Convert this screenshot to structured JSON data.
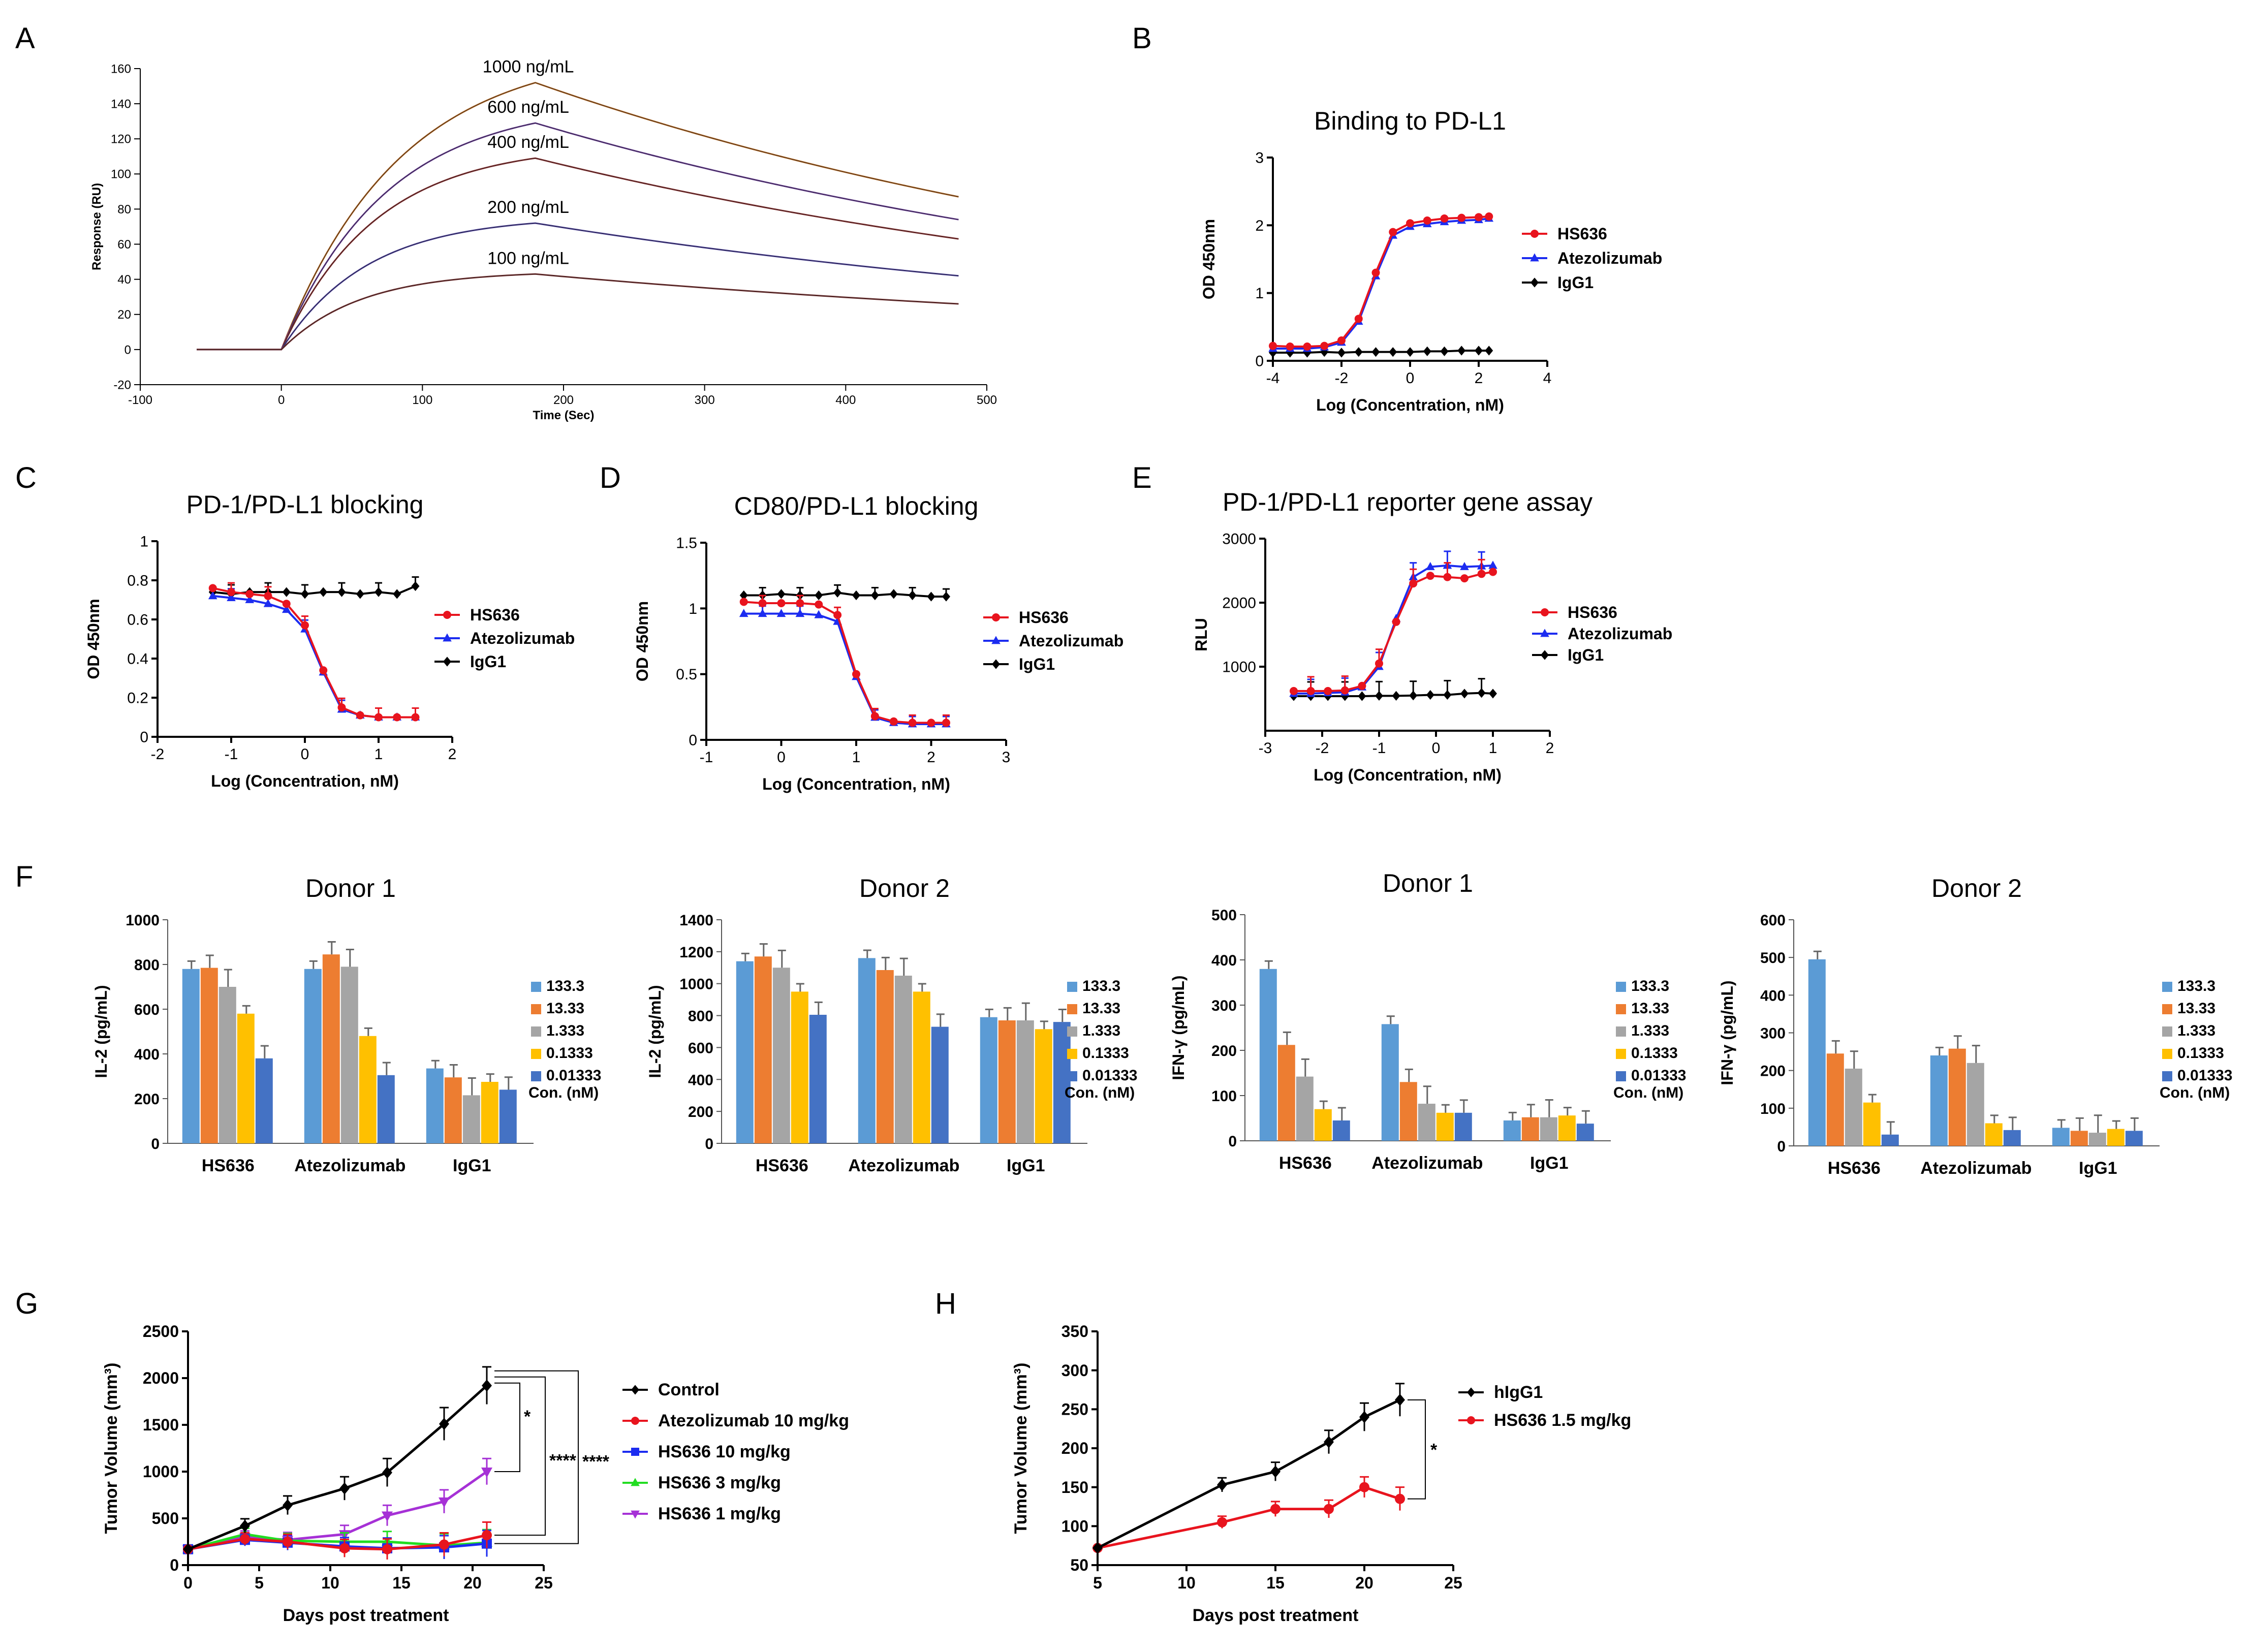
{
  "figure": {
    "panel_letters": [
      "A",
      "B",
      "C",
      "D",
      "E",
      "F",
      "G",
      "H"
    ]
  },
  "chart_data": [
    {
      "id": "A",
      "type": "line",
      "title": "",
      "xlabel": "Time (Sec)",
      "ylabel": "Response (RU)",
      "xlim": [
        -100,
        500
      ],
      "ylim": [
        -20,
        160
      ],
      "xticks": [
        -100,
        0,
        100,
        200,
        300,
        400,
        500
      ],
      "yticks": [
        -20,
        0,
        20,
        40,
        60,
        80,
        100,
        120,
        140,
        160
      ],
      "series": [
        {
          "name": "1000 ng/mL",
          "peak": 152,
          "end": 87,
          "color": "#b5651d"
        },
        {
          "name": "600 ng/mL",
          "peak": 129,
          "end": 74,
          "color": "#6a3d9a"
        },
        {
          "name": "400 ng/mL",
          "peak": 109,
          "end": 63,
          "color": "#8b2e2e"
        },
        {
          "name": "200 ng/mL",
          "peak": 72,
          "end": 42,
          "color": "#4b3fa0"
        },
        {
          "name": "100 ng/mL",
          "peak": 43,
          "end": 26,
          "color": "#7a3030"
        }
      ],
      "association_end": 180,
      "dissociation_end": 480
    },
    {
      "id": "B",
      "type": "line",
      "title": "Binding to PD-L1",
      "xlabel": "Log (Concentration, nM)",
      "ylabel": "OD 450nm",
      "xlim": [
        -4,
        4
      ],
      "ylim": [
        0,
        3
      ],
      "xticks": [
        -4,
        -2,
        0,
        2,
        4
      ],
      "yticks": [
        0,
        1,
        2,
        3
      ],
      "series": [
        {
          "name": "HS636",
          "color": "#e8141e",
          "marker": "circle",
          "x": [
            -4,
            -3.5,
            -3,
            -2.5,
            -2,
            -1.5,
            -1,
            -0.5,
            0,
            0.5,
            1,
            1.5,
            2,
            2.3
          ],
          "y": [
            0.22,
            0.21,
            0.21,
            0.22,
            0.3,
            0.62,
            1.3,
            1.9,
            2.03,
            2.07,
            2.1,
            2.11,
            2.12,
            2.13
          ]
        },
        {
          "name": "Atezolizumab",
          "color": "#1c2cf0",
          "marker": "triangle",
          "x": [
            -4,
            -3.5,
            -3,
            -2.5,
            -2,
            -1.5,
            -1,
            -0.5,
            0,
            0.5,
            1,
            1.5,
            2,
            2.3
          ],
          "y": [
            0.18,
            0.18,
            0.18,
            0.2,
            0.27,
            0.58,
            1.25,
            1.85,
            1.98,
            2.02,
            2.05,
            2.07,
            2.08,
            2.1
          ]
        },
        {
          "name": "IgG1",
          "color": "#000000",
          "marker": "diamond",
          "x": [
            -4,
            -3.5,
            -3,
            -2.5,
            -2,
            -1.5,
            -1,
            -0.5,
            0,
            0.5,
            1,
            1.5,
            2,
            2.3
          ],
          "y": [
            0.12,
            0.12,
            0.12,
            0.13,
            0.12,
            0.13,
            0.13,
            0.13,
            0.13,
            0.14,
            0.14,
            0.15,
            0.15,
            0.15
          ]
        }
      ]
    },
    {
      "id": "C",
      "type": "line",
      "title": "PD-1/PD-L1 blocking",
      "xlabel": "Log (Concentration, nM)",
      "ylabel": "OD 450nm",
      "xlim": [
        -2,
        2
      ],
      "ylim": [
        0.0,
        1.0
      ],
      "xticks": [
        -2,
        -1,
        0,
        1,
        2
      ],
      "yticks": [
        0.0,
        0.2,
        0.4,
        0.6,
        0.8,
        1.0
      ],
      "series": [
        {
          "name": "HS636",
          "color": "#e8141e",
          "marker": "circle",
          "x": [
            -1.25,
            -1,
            -0.75,
            -0.5,
            -0.25,
            0,
            0.25,
            0.5,
            0.75,
            1,
            1.25,
            1.5
          ],
          "y": [
            0.76,
            0.74,
            0.73,
            0.72,
            0.68,
            0.57,
            0.34,
            0.15,
            0.11,
            0.1,
            0.1,
            0.1
          ]
        },
        {
          "name": "Atezolizumab",
          "color": "#1c2cf0",
          "marker": "triangle",
          "x": [
            -1.25,
            -1,
            -0.75,
            -0.5,
            -0.25,
            0,
            0.25,
            0.5,
            0.75,
            1,
            1.25,
            1.5
          ],
          "y": [
            0.72,
            0.71,
            0.7,
            0.68,
            0.65,
            0.55,
            0.33,
            0.14,
            0.11,
            0.1,
            0.1,
            0.1
          ]
        },
        {
          "name": "IgG1",
          "color": "#000000",
          "marker": "diamond",
          "x": [
            -1.25,
            -1,
            -0.75,
            -0.5,
            -0.25,
            0,
            0.25,
            0.5,
            0.75,
            1,
            1.25,
            1.5
          ],
          "y": [
            0.74,
            0.73,
            0.74,
            0.74,
            0.74,
            0.73,
            0.74,
            0.74,
            0.73,
            0.74,
            0.73,
            0.77
          ]
        }
      ]
    },
    {
      "id": "D",
      "type": "line",
      "title": "CD80/PD-L1 blocking",
      "xlabel": "Log (Concentration, nM)",
      "ylabel": "OD 450nm",
      "xlim": [
        -1,
        3
      ],
      "ylim": [
        0.0,
        1.5
      ],
      "xticks": [
        -1,
        0,
        1,
        2,
        3
      ],
      "yticks": [
        0.0,
        0.5,
        1.0,
        1.5
      ],
      "series": [
        {
          "name": "HS636",
          "color": "#e8141e",
          "marker": "circle",
          "x": [
            -0.5,
            -0.25,
            0,
            0.25,
            0.5,
            0.75,
            1,
            1.25,
            1.5,
            1.75,
            2,
            2.2
          ],
          "y": [
            1.05,
            1.04,
            1.04,
            1.04,
            1.03,
            0.95,
            0.5,
            0.18,
            0.14,
            0.13,
            0.13,
            0.13
          ]
        },
        {
          "name": "Atezolizumab",
          "color": "#1c2cf0",
          "marker": "triangle",
          "x": [
            -0.5,
            -0.25,
            0,
            0.25,
            0.5,
            0.75,
            1,
            1.25,
            1.5,
            1.75,
            2,
            2.2
          ],
          "y": [
            0.96,
            0.96,
            0.96,
            0.96,
            0.95,
            0.9,
            0.48,
            0.17,
            0.13,
            0.12,
            0.12,
            0.12
          ]
        },
        {
          "name": "IgG1",
          "color": "#000000",
          "marker": "diamond",
          "x": [
            -0.5,
            -0.25,
            0,
            0.25,
            0.5,
            0.75,
            1,
            1.25,
            1.5,
            1.75,
            2,
            2.2
          ],
          "y": [
            1.1,
            1.1,
            1.11,
            1.1,
            1.1,
            1.12,
            1.1,
            1.1,
            1.11,
            1.1,
            1.09,
            1.09
          ]
        }
      ]
    },
    {
      "id": "E",
      "type": "line",
      "title": "PD-1/PD-L1 reporter gene assay",
      "xlabel": "Log (Concentration, nM)",
      "ylabel": "RLU",
      "xlim": [
        -3,
        2
      ],
      "ylim": [
        0,
        3000
      ],
      "xticks": [
        -3,
        -2,
        -1,
        0,
        1,
        2
      ],
      "yticks": [
        1000,
        2000,
        3000
      ],
      "series": [
        {
          "name": "HS636",
          "color": "#e8141e",
          "marker": "circle",
          "x": [
            -2.5,
            -2.2,
            -1.9,
            -1.6,
            -1.3,
            -1,
            -0.7,
            -0.4,
            -0.1,
            0.2,
            0.5,
            0.8,
            1.0
          ],
          "y": [
            620,
            620,
            620,
            630,
            700,
            1050,
            1700,
            2300,
            2420,
            2400,
            2380,
            2450,
            2480
          ]
        },
        {
          "name": "Atezolizumab",
          "color": "#1c2cf0",
          "marker": "triangle",
          "x": [
            -2.5,
            -2.2,
            -1.9,
            -1.6,
            -1.3,
            -1,
            -0.7,
            -0.4,
            -0.1,
            0.2,
            0.5,
            0.8,
            1.0
          ],
          "y": [
            580,
            580,
            590,
            600,
            680,
            1000,
            1750,
            2400,
            2560,
            2580,
            2560,
            2570,
            2580
          ]
        },
        {
          "name": "IgG1",
          "color": "#000000",
          "marker": "diamond",
          "x": [
            -2.5,
            -2.2,
            -1.9,
            -1.6,
            -1.3,
            -1,
            -0.7,
            -0.4,
            -0.1,
            0.2,
            0.5,
            0.8,
            1.0
          ],
          "y": [
            540,
            540,
            540,
            540,
            540,
            545,
            545,
            550,
            560,
            560,
            580,
            590,
            580
          ]
        }
      ]
    },
    {
      "id": "F1",
      "type": "bar",
      "title": "Donor 1",
      "ylabel": "IL-2 (pg/mL)",
      "ylim": [
        0,
        1000
      ],
      "yticks": [
        0,
        200,
        400,
        600,
        800,
        1000
      ],
      "categories": [
        "HS636",
        "Atezolizumab",
        "IgG1"
      ],
      "series": [
        {
          "name": "133.3",
          "color": "#5b9bd5",
          "values": [
            780,
            780,
            335
          ]
        },
        {
          "name": "13.33",
          "color": "#ed7d31",
          "values": [
            785,
            845,
            295
          ]
        },
        {
          "name": "1.333",
          "color": "#a5a5a5",
          "values": [
            700,
            790,
            215
          ]
        },
        {
          "name": "0.1333",
          "color": "#ffc000",
          "values": [
            580,
            480,
            275
          ]
        },
        {
          "name": "0.01333",
          "color": "#4472c4",
          "values": [
            380,
            305,
            240
          ]
        }
      ],
      "legend_title": "Con. (nM)"
    },
    {
      "id": "F2",
      "type": "bar",
      "title": "Donor 2",
      "ylabel": "IL-2 (pg/mL)",
      "ylim": [
        0,
        1400
      ],
      "yticks": [
        0,
        200,
        400,
        600,
        800,
        1000,
        1200,
        1400
      ],
      "categories": [
        "HS636",
        "Atezolizumab",
        "IgG1"
      ],
      "series": [
        {
          "name": "133.3",
          "color": "#5b9bd5",
          "values": [
            1140,
            1160,
            790
          ]
        },
        {
          "name": "13.33",
          "color": "#ed7d31",
          "values": [
            1170,
            1085,
            770
          ]
        },
        {
          "name": "1.333",
          "color": "#a5a5a5",
          "values": [
            1100,
            1050,
            770
          ]
        },
        {
          "name": "0.1333",
          "color": "#ffc000",
          "values": [
            950,
            950,
            715
          ]
        },
        {
          "name": "0.01333",
          "color": "#4472c4",
          "values": [
            805,
            730,
            760
          ]
        }
      ],
      "legend_title": "Con. (nM)"
    },
    {
      "id": "F3",
      "type": "bar",
      "title": "Donor 1",
      "ylabel": "IFN-γ (pg/mL)",
      "ylim": [
        0,
        500
      ],
      "yticks": [
        0,
        100,
        200,
        300,
        400,
        500
      ],
      "categories": [
        "HS636",
        "Atezolizumab",
        "IgG1"
      ],
      "series": [
        {
          "name": "133.3",
          "color": "#5b9bd5",
          "values": [
            380,
            258,
            45
          ]
        },
        {
          "name": "13.33",
          "color": "#ed7d31",
          "values": [
            212,
            130,
            52
          ]
        },
        {
          "name": "1.333",
          "color": "#a5a5a5",
          "values": [
            142,
            82,
            52
          ]
        },
        {
          "name": "0.1333",
          "color": "#ffc000",
          "values": [
            70,
            62,
            56
          ]
        },
        {
          "name": "0.01333",
          "color": "#4472c4",
          "values": [
            45,
            62,
            38
          ]
        }
      ],
      "legend_title": "Con. (nM)"
    },
    {
      "id": "F4",
      "type": "bar",
      "title": "Donor 2",
      "ylabel": "IFN-γ (pg/mL)",
      "ylim": [
        0,
        600
      ],
      "yticks": [
        0,
        100,
        200,
        300,
        400,
        500,
        600
      ],
      "categories": [
        "HS636",
        "Atezolizumab",
        "IgG1"
      ],
      "series": [
        {
          "name": "133.3",
          "color": "#5b9bd5",
          "values": [
            495,
            240,
            48
          ]
        },
        {
          "name": "13.33",
          "color": "#ed7d31",
          "values": [
            245,
            258,
            40
          ]
        },
        {
          "name": "1.333",
          "color": "#a5a5a5",
          "values": [
            205,
            220,
            35
          ]
        },
        {
          "name": "0.1333",
          "color": "#ffc000",
          "values": [
            115,
            60,
            45
          ]
        },
        {
          "name": "0.01333",
          "color": "#4472c4",
          "values": [
            30,
            42,
            40
          ]
        }
      ],
      "legend_title": "Con. (nM)"
    },
    {
      "id": "G",
      "type": "line",
      "title": "",
      "xlabel": "Days post treatment",
      "ylabel": "Tumor Volume  (mm³)",
      "xlim": [
        0,
        25
      ],
      "ylim": [
        0,
        2500
      ],
      "xticks": [
        0,
        5,
        10,
        15,
        20,
        25
      ],
      "yticks": [
        0,
        500,
        1000,
        1500,
        2000,
        2500
      ],
      "series": [
        {
          "name": "Control",
          "color": "#000000",
          "marker": "diamond",
          "x": [
            0,
            4,
            7,
            11,
            14,
            18,
            21
          ],
          "y": [
            170,
            420,
            640,
            820,
            990,
            1510,
            1920
          ]
        },
        {
          "name": "Atezolizumab 10 mg/kg",
          "color": "#e8141e",
          "marker": "circle",
          "x": [
            0,
            4,
            7,
            11,
            14,
            18,
            21
          ],
          "y": [
            170,
            280,
            250,
            180,
            170,
            220,
            320
          ]
        },
        {
          "name": "HS636 10 mg/kg",
          "color": "#1c2cf0",
          "marker": "square",
          "x": [
            0,
            4,
            7,
            11,
            14,
            18,
            21
          ],
          "y": [
            170,
            270,
            240,
            200,
            180,
            190,
            230
          ]
        },
        {
          "name": "HS636 3 mg/kg",
          "color": "#22dd22",
          "marker": "triangle",
          "x": [
            0,
            4,
            7,
            11,
            14,
            18,
            21
          ],
          "y": [
            170,
            330,
            260,
            250,
            250,
            210,
            240
          ]
        },
        {
          "name": "HS636 1 mg/kg",
          "color": "#a631d6",
          "marker": "triangle-down",
          "x": [
            0,
            4,
            7,
            11,
            14,
            18,
            21
          ],
          "y": [
            170,
            300,
            270,
            330,
            530,
            680,
            1000
          ]
        }
      ],
      "significance": [
        "*",
        "****",
        "****"
      ]
    },
    {
      "id": "H",
      "type": "line",
      "title": "",
      "xlabel": "Days post treatment",
      "ylabel": "Tumor Volume  (mm³)",
      "xlim": [
        5,
        25
      ],
      "ylim": [
        50,
        350
      ],
      "xticks": [
        5,
        10,
        15,
        20,
        25
      ],
      "yticks": [
        50,
        100,
        150,
        200,
        250,
        300,
        350
      ],
      "series": [
        {
          "name": "hIgG1",
          "color": "#000000",
          "marker": "diamond",
          "x": [
            5,
            12,
            15,
            18,
            20,
            22
          ],
          "y": [
            72,
            153,
            170,
            208,
            240,
            262
          ]
        },
        {
          "name": "HS636 1.5 mg/kg",
          "color": "#e8141e",
          "marker": "circle",
          "x": [
            5,
            12,
            15,
            18,
            20,
            22
          ],
          "y": [
            72,
            105,
            122,
            122,
            150,
            135
          ]
        }
      ],
      "significance": [
        "*"
      ]
    }
  ]
}
